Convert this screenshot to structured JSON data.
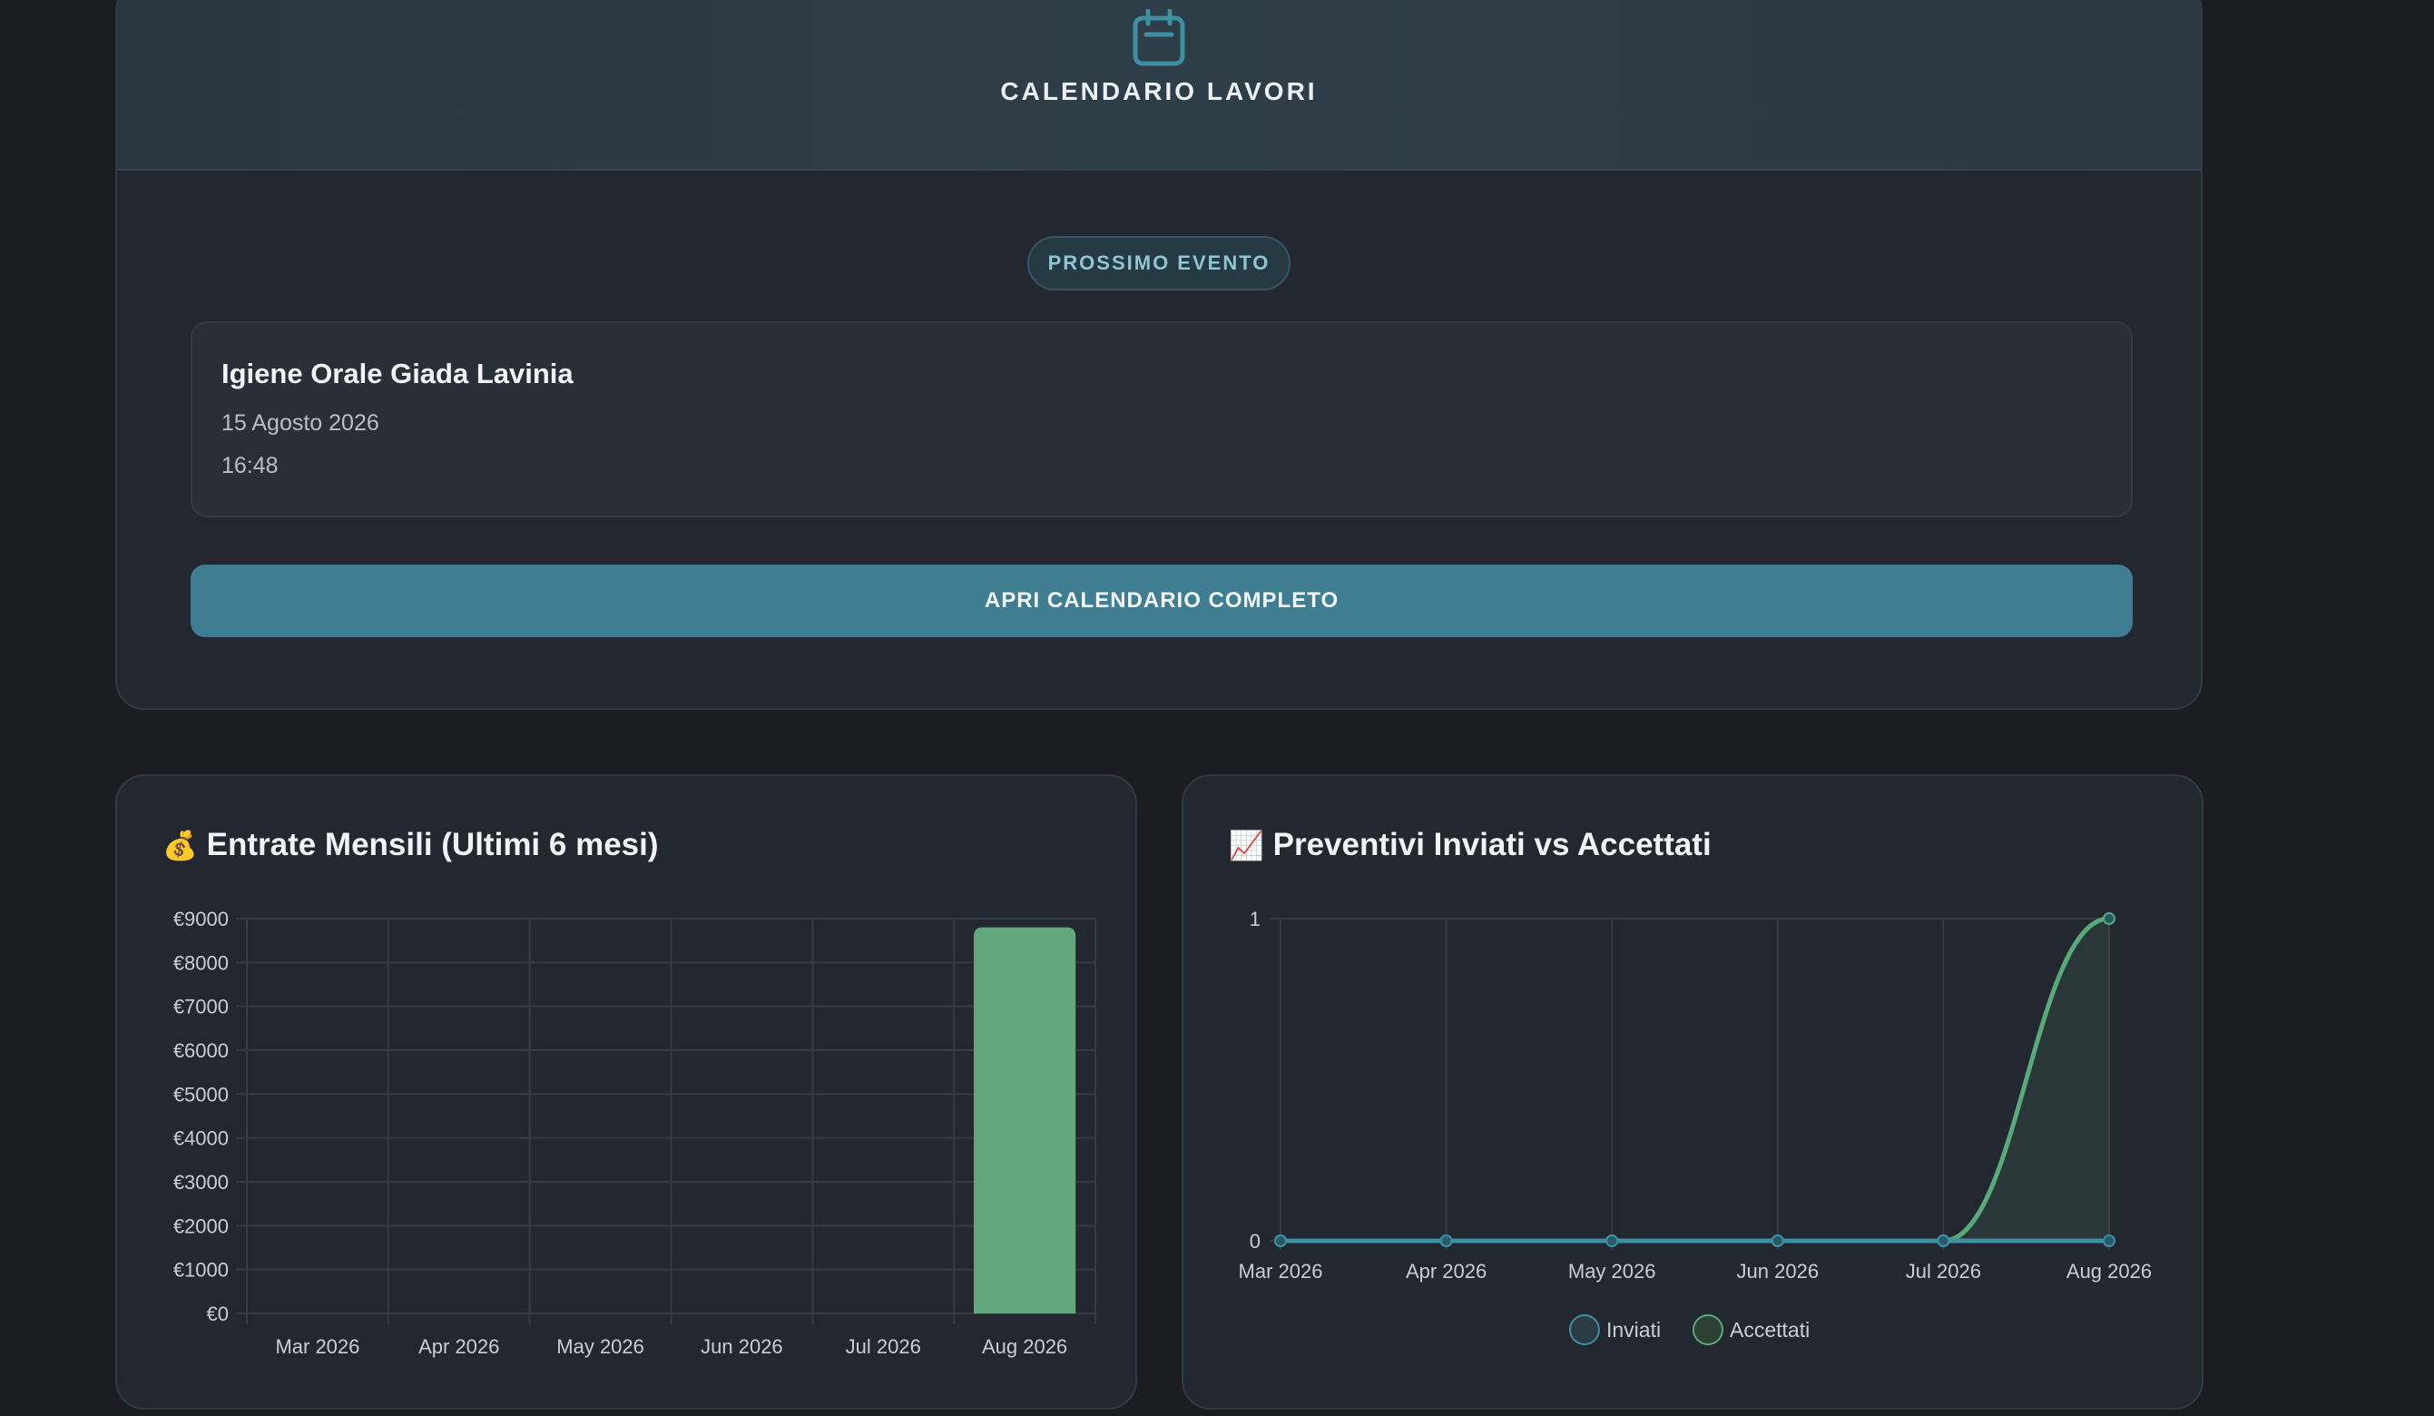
{
  "calendar": {
    "title": "CALENDARIO LAVORI",
    "icon": "calendar-icon",
    "badge": "PROSSIMO EVENTO",
    "event": {
      "title": "Igiene Orale Giada Lavinia",
      "date": "15 Agosto 2026",
      "time": "16:48"
    },
    "open_button": "APRI CALENDARIO COMPLETO"
  },
  "colors": {
    "accent": "#3f7d92",
    "bar_green": "#63a77c",
    "line_teal": "#3f8fa3",
    "line_green": "#5aa97a"
  },
  "charts": {
    "income": {
      "emoji": "💰",
      "title": "Entrate Mensili (Ultimi 6 mesi)"
    },
    "quotes": {
      "emoji": "📈",
      "title": "Preventivi Inviati vs Accettati"
    }
  },
  "chart_data": [
    {
      "type": "bar",
      "title": "Entrate Mensili (Ultimi 6 mesi)",
      "categories": [
        "Mar 2026",
        "Apr 2026",
        "May 2026",
        "Jun 2026",
        "Jul 2026",
        "Aug 2026"
      ],
      "values": [
        0,
        0,
        0,
        0,
        0,
        8800
      ],
      "ylim": [
        0,
        9000
      ],
      "yticks": [
        "€0",
        "€1000",
        "€2000",
        "€3000",
        "€4000",
        "€5000",
        "€6000",
        "€7000",
        "€8000",
        "€9000"
      ],
      "grid": true
    },
    {
      "type": "line",
      "title": "Preventivi Inviati vs Accettati",
      "categories": [
        "Mar 2026",
        "Apr 2026",
        "May 2026",
        "Jun 2026",
        "Jul 2026",
        "Aug 2026"
      ],
      "series": [
        {
          "name": "Inviati",
          "values": [
            0,
            0,
            0,
            0,
            0,
            0
          ]
        },
        {
          "name": "Accettati",
          "values": [
            0,
            0,
            0,
            0,
            0,
            1
          ]
        }
      ],
      "ylim": [
        0,
        1
      ],
      "yticks": [
        "0",
        "1"
      ],
      "legend": "bottom",
      "grid": true
    }
  ]
}
